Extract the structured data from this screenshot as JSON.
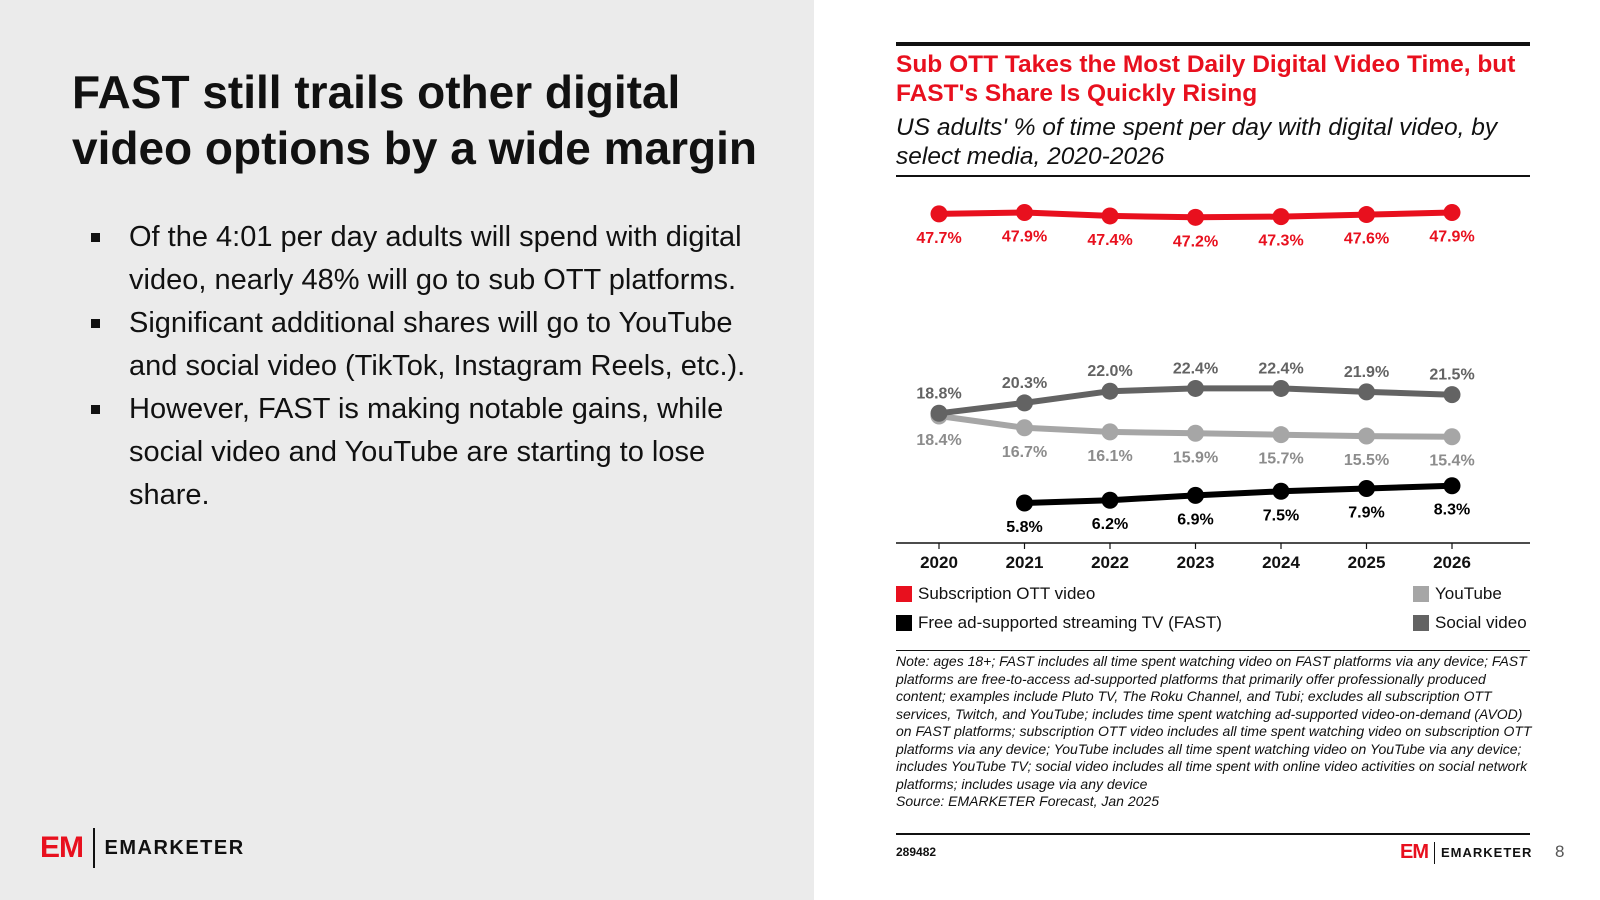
{
  "slide": {
    "title": "FAST still trails other digital video options by a wide margin",
    "bullets": [
      "Of the 4:01 per day adults will spend with digital video, nearly 48% will go to sub OTT platforms.",
      "Significant additional shares will go to YouTube and social video (TikTok, Instagram Reels, etc.).",
      "However, FAST is making notable gains, while social video and YouTube are starting to lose share."
    ],
    "page_number": "8"
  },
  "logo": {
    "mark": "EM",
    "wordmark": "EMARKETER"
  },
  "chart_data": {
    "type": "line",
    "title": "Sub OTT Takes the Most Daily Digital Video Time, but FAST's Share Is Quickly Rising",
    "subtitle": "US adults' % of time spent per day with digital video, by select media, 2020-2026",
    "x": [
      "2020",
      "2021",
      "2022",
      "2023",
      "2024",
      "2025",
      "2026"
    ],
    "ylim": [
      0,
      50
    ],
    "grid": false,
    "series": [
      {
        "name": "Subscription OTT video",
        "color": "#e8101e",
        "values": [
          47.7,
          47.9,
          47.4,
          47.2,
          47.3,
          47.6,
          47.9
        ],
        "labels": [
          "47.7%",
          "47.9%",
          "47.4%",
          "47.2%",
          "47.3%",
          "47.6%",
          "47.9%"
        ],
        "label_position": "below"
      },
      {
        "name": "Social video",
        "color": "#636363",
        "values": [
          18.8,
          20.3,
          22.0,
          22.4,
          22.4,
          21.9,
          21.5
        ],
        "labels": [
          "18.8%",
          "20.3%",
          "22.0%",
          "22.4%",
          "22.4%",
          "21.9%",
          "21.5%"
        ],
        "label_position": "above"
      },
      {
        "name": "YouTube",
        "color": "#a6a6a6",
        "values": [
          18.4,
          16.7,
          16.1,
          15.9,
          15.7,
          15.5,
          15.4
        ],
        "labels": [
          "18.4%",
          "16.7%",
          "16.1%",
          "15.9%",
          "15.7%",
          "15.5%",
          "15.4%"
        ],
        "label_position": "below"
      },
      {
        "name": "Free ad-supported streaming TV (FAST)",
        "color": "#000000",
        "values": [
          null,
          5.8,
          6.2,
          6.9,
          7.5,
          7.9,
          8.3
        ],
        "labels": [
          "",
          "5.8%",
          "6.2%",
          "6.9%",
          "7.5%",
          "7.9%",
          "8.3%"
        ],
        "label_position": "below"
      }
    ],
    "legend_placement": "bottom",
    "note": "Note: ages 18+; FAST includes all time spent watching video on FAST platforms via any device; FAST platforms are free-to-access ad-supported platforms that primarily offer professionally produced content; examples include Pluto TV, The Roku Channel, and Tubi; excludes all subscription OTT services, Twitch, and YouTube; includes time spent watching ad-supported video-on-demand (AVOD) on FAST platforms; subscription OTT video includes all time spent watching video on subscription OTT platforms via any device; YouTube includes all time spent watching video on YouTube via any device; includes YouTube TV; social video includes all time spent with online video activities on social network platforms; includes usage via any device",
    "source": "Source: EMARKETER Forecast, Jan 2025",
    "chart_id": "289482"
  }
}
